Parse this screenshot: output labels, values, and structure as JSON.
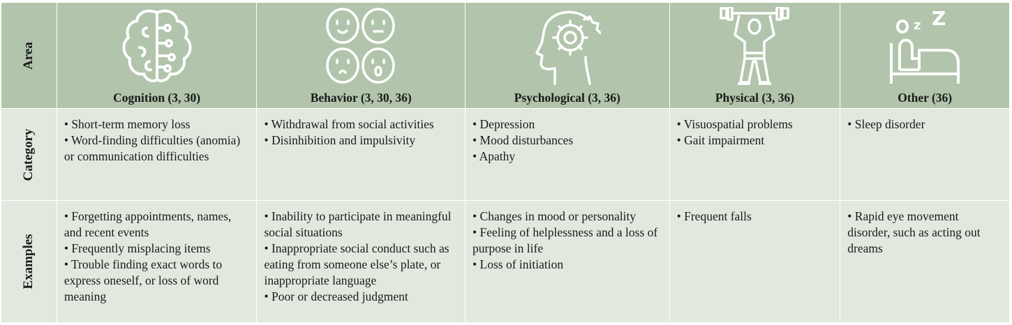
{
  "row_labels": {
    "area": "Area",
    "category": "Category",
    "examples": "Examples"
  },
  "columns": [
    {
      "title": "Cognition (3, 30)",
      "icon": "brain-circuit-icon",
      "category": [
        "• Short-term memory loss",
        "• Word-finding difficulties (anomia) or communication difficulties"
      ],
      "examples": [
        "• Forgetting appointments, names, and recent events",
        "• Frequently misplacing items",
        "• Trouble finding exact words to express oneself, or loss of word meaning"
      ]
    },
    {
      "title": "Behavior (3, 30, 36)",
      "icon": "faces-icon",
      "category": [
        "•  Withdrawal from social activities",
        "• Disinhibition and impulsivity"
      ],
      "examples": [
        "• Inability to participate in meaningful social situations",
        "• Inappropriate social conduct such as eating from someone else’s plate, or inappropriate language",
        "• Poor or decreased judgment"
      ]
    },
    {
      "title": "Psychological (3, 36)",
      "icon": "head-gear-icon",
      "category": [
        "• Depression",
        "• Mood disturbances",
        "• Apathy"
      ],
      "examples": [
        "• Changes in mood or personality",
        "• Feeling of helplessness and a loss of purpose in life",
        "• Loss of initiation"
      ]
    },
    {
      "title": "Physical (3, 36)",
      "icon": "weightlifter-icon",
      "category": [
        "• Visuospatial problems",
        "• Gait impairment"
      ],
      "examples": [
        "• Frequent falls"
      ]
    },
    {
      "title": "Other (36)",
      "icon": "sleep-bed-icon",
      "category": [
        "• Sleep disorder"
      ],
      "examples": [
        "• Rapid eye movement disorder, such as acting out dreams"
      ]
    }
  ],
  "colors": {
    "header_bg": "#b2c5ac",
    "body_bg": "#e3e8df",
    "icon": "#ffffff"
  }
}
